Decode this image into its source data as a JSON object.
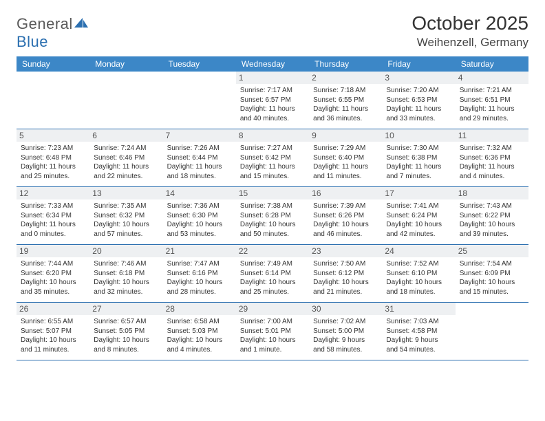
{
  "brand": {
    "word1": "General",
    "word2": "Blue"
  },
  "title": "October 2025",
  "location": "Weihenzell, Germany",
  "colors": {
    "header_bg": "#3c87c7",
    "border": "#2b6fb0",
    "daynum_bg": "#eef0f2",
    "text": "#333333",
    "logo_gray": "#5a5a5a",
    "logo_blue": "#2b6fb0"
  },
  "day_labels": [
    "Sunday",
    "Monday",
    "Tuesday",
    "Wednesday",
    "Thursday",
    "Friday",
    "Saturday"
  ],
  "weeks": [
    [
      {
        "n": "",
        "sr": "",
        "ss": "",
        "dl": ""
      },
      {
        "n": "",
        "sr": "",
        "ss": "",
        "dl": ""
      },
      {
        "n": "",
        "sr": "",
        "ss": "",
        "dl": ""
      },
      {
        "n": "1",
        "sr": "7:17 AM",
        "ss": "6:57 PM",
        "dl": "11 hours and 40 minutes."
      },
      {
        "n": "2",
        "sr": "7:18 AM",
        "ss": "6:55 PM",
        "dl": "11 hours and 36 minutes."
      },
      {
        "n": "3",
        "sr": "7:20 AM",
        "ss": "6:53 PM",
        "dl": "11 hours and 33 minutes."
      },
      {
        "n": "4",
        "sr": "7:21 AM",
        "ss": "6:51 PM",
        "dl": "11 hours and 29 minutes."
      }
    ],
    [
      {
        "n": "5",
        "sr": "7:23 AM",
        "ss": "6:48 PM",
        "dl": "11 hours and 25 minutes."
      },
      {
        "n": "6",
        "sr": "7:24 AM",
        "ss": "6:46 PM",
        "dl": "11 hours and 22 minutes."
      },
      {
        "n": "7",
        "sr": "7:26 AM",
        "ss": "6:44 PM",
        "dl": "11 hours and 18 minutes."
      },
      {
        "n": "8",
        "sr": "7:27 AM",
        "ss": "6:42 PM",
        "dl": "11 hours and 15 minutes."
      },
      {
        "n": "9",
        "sr": "7:29 AM",
        "ss": "6:40 PM",
        "dl": "11 hours and 11 minutes."
      },
      {
        "n": "10",
        "sr": "7:30 AM",
        "ss": "6:38 PM",
        "dl": "11 hours and 7 minutes."
      },
      {
        "n": "11",
        "sr": "7:32 AM",
        "ss": "6:36 PM",
        "dl": "11 hours and 4 minutes."
      }
    ],
    [
      {
        "n": "12",
        "sr": "7:33 AM",
        "ss": "6:34 PM",
        "dl": "11 hours and 0 minutes."
      },
      {
        "n": "13",
        "sr": "7:35 AM",
        "ss": "6:32 PM",
        "dl": "10 hours and 57 minutes."
      },
      {
        "n": "14",
        "sr": "7:36 AM",
        "ss": "6:30 PM",
        "dl": "10 hours and 53 minutes."
      },
      {
        "n": "15",
        "sr": "7:38 AM",
        "ss": "6:28 PM",
        "dl": "10 hours and 50 minutes."
      },
      {
        "n": "16",
        "sr": "7:39 AM",
        "ss": "6:26 PM",
        "dl": "10 hours and 46 minutes."
      },
      {
        "n": "17",
        "sr": "7:41 AM",
        "ss": "6:24 PM",
        "dl": "10 hours and 42 minutes."
      },
      {
        "n": "18",
        "sr": "7:43 AM",
        "ss": "6:22 PM",
        "dl": "10 hours and 39 minutes."
      }
    ],
    [
      {
        "n": "19",
        "sr": "7:44 AM",
        "ss": "6:20 PM",
        "dl": "10 hours and 35 minutes."
      },
      {
        "n": "20",
        "sr": "7:46 AM",
        "ss": "6:18 PM",
        "dl": "10 hours and 32 minutes."
      },
      {
        "n": "21",
        "sr": "7:47 AM",
        "ss": "6:16 PM",
        "dl": "10 hours and 28 minutes."
      },
      {
        "n": "22",
        "sr": "7:49 AM",
        "ss": "6:14 PM",
        "dl": "10 hours and 25 minutes."
      },
      {
        "n": "23",
        "sr": "7:50 AM",
        "ss": "6:12 PM",
        "dl": "10 hours and 21 minutes."
      },
      {
        "n": "24",
        "sr": "7:52 AM",
        "ss": "6:10 PM",
        "dl": "10 hours and 18 minutes."
      },
      {
        "n": "25",
        "sr": "7:54 AM",
        "ss": "6:09 PM",
        "dl": "10 hours and 15 minutes."
      }
    ],
    [
      {
        "n": "26",
        "sr": "6:55 AM",
        "ss": "5:07 PM",
        "dl": "10 hours and 11 minutes."
      },
      {
        "n": "27",
        "sr": "6:57 AM",
        "ss": "5:05 PM",
        "dl": "10 hours and 8 minutes."
      },
      {
        "n": "28",
        "sr": "6:58 AM",
        "ss": "5:03 PM",
        "dl": "10 hours and 4 minutes."
      },
      {
        "n": "29",
        "sr": "7:00 AM",
        "ss": "5:01 PM",
        "dl": "10 hours and 1 minute."
      },
      {
        "n": "30",
        "sr": "7:02 AM",
        "ss": "5:00 PM",
        "dl": "9 hours and 58 minutes."
      },
      {
        "n": "31",
        "sr": "7:03 AM",
        "ss": "4:58 PM",
        "dl": "9 hours and 54 minutes."
      },
      {
        "n": "",
        "sr": "",
        "ss": "",
        "dl": ""
      }
    ]
  ],
  "labels": {
    "sunrise": "Sunrise: ",
    "sunset": "Sunset: ",
    "daylight": "Daylight: "
  }
}
